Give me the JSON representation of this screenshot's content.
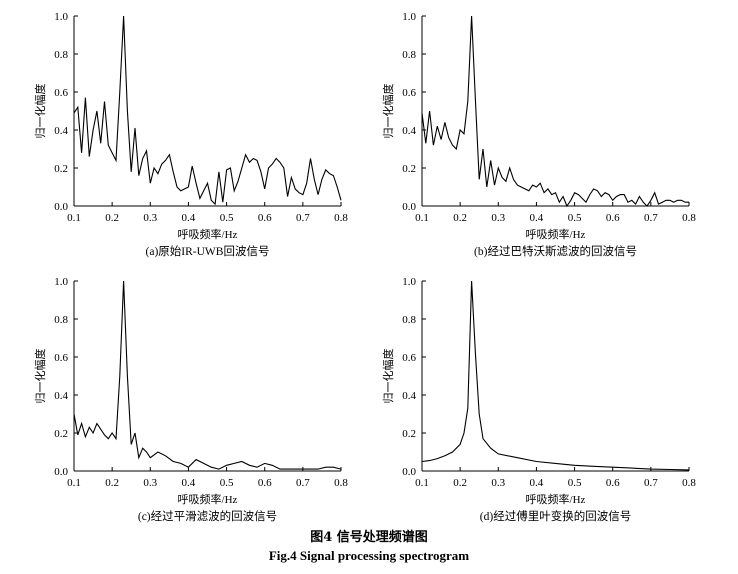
{
  "figure": {
    "caption_zh": "图4  信号处理频谱图",
    "caption_en": "Fig.4  Signal processing spectrogram"
  },
  "chart_data": [
    {
      "type": "line",
      "panel_label": "(a)原始IR-UWB回波信号",
      "xlabel": "呼吸频率/Hz",
      "ylabel": "归一化幅度",
      "xlim": [
        0.1,
        0.8
      ],
      "ylim": [
        0.0,
        1.0
      ],
      "xticks": [
        "0.1",
        "0.2",
        "0.3",
        "0.4",
        "0.5",
        "0.6",
        "0.7",
        "0.8"
      ],
      "yticks": [
        "0.0",
        "0.2",
        "0.4",
        "0.6",
        "0.8",
        "1.0"
      ],
      "x": [
        0.1,
        0.11,
        0.12,
        0.13,
        0.14,
        0.15,
        0.16,
        0.17,
        0.18,
        0.19,
        0.2,
        0.21,
        0.22,
        0.23,
        0.24,
        0.25,
        0.26,
        0.27,
        0.28,
        0.29,
        0.3,
        0.31,
        0.32,
        0.33,
        0.34,
        0.35,
        0.36,
        0.37,
        0.38,
        0.39,
        0.4,
        0.41,
        0.42,
        0.43,
        0.44,
        0.45,
        0.46,
        0.47,
        0.48,
        0.49,
        0.5,
        0.51,
        0.52,
        0.53,
        0.54,
        0.55,
        0.56,
        0.57,
        0.58,
        0.59,
        0.6,
        0.61,
        0.62,
        0.63,
        0.64,
        0.65,
        0.66,
        0.67,
        0.68,
        0.69,
        0.7,
        0.71,
        0.72,
        0.73,
        0.74,
        0.75,
        0.76,
        0.77,
        0.78,
        0.79,
        0.8
      ],
      "y": [
        0.49,
        0.52,
        0.28,
        0.57,
        0.26,
        0.4,
        0.5,
        0.33,
        0.55,
        0.32,
        0.28,
        0.24,
        0.6,
        1.0,
        0.5,
        0.18,
        0.41,
        0.16,
        0.25,
        0.29,
        0.12,
        0.2,
        0.17,
        0.22,
        0.24,
        0.27,
        0.18,
        0.1,
        0.08,
        0.09,
        0.1,
        0.21,
        0.12,
        0.04,
        0.08,
        0.12,
        0.03,
        0.01,
        0.18,
        0.02,
        0.19,
        0.2,
        0.08,
        0.13,
        0.2,
        0.27,
        0.23,
        0.25,
        0.24,
        0.18,
        0.09,
        0.2,
        0.22,
        0.25,
        0.23,
        0.2,
        0.05,
        0.15,
        0.09,
        0.07,
        0.06,
        0.12,
        0.25,
        0.14,
        0.06,
        0.14,
        0.19,
        0.17,
        0.16,
        0.1,
        0.03
      ]
    },
    {
      "type": "line",
      "panel_label": "(b)经过巴特沃斯滤波的回波信号",
      "xlabel": "呼吸频率/Hz",
      "ylabel": "归一化幅度",
      "xlim": [
        0.1,
        0.8
      ],
      "ylim": [
        0.0,
        1.0
      ],
      "xticks": [
        "0.1",
        "0.2",
        "0.3",
        "0.4",
        "0.5",
        "0.6",
        "0.7",
        "0.8"
      ],
      "yticks": [
        "0.0",
        "0.2",
        "0.4",
        "0.6",
        "0.8",
        "1.0"
      ],
      "x": [
        0.1,
        0.11,
        0.12,
        0.13,
        0.14,
        0.15,
        0.16,
        0.17,
        0.18,
        0.19,
        0.2,
        0.21,
        0.22,
        0.23,
        0.24,
        0.25,
        0.26,
        0.27,
        0.28,
        0.29,
        0.3,
        0.31,
        0.32,
        0.33,
        0.34,
        0.35,
        0.36,
        0.37,
        0.38,
        0.39,
        0.4,
        0.41,
        0.42,
        0.43,
        0.44,
        0.45,
        0.46,
        0.47,
        0.48,
        0.49,
        0.5,
        0.51,
        0.52,
        0.53,
        0.54,
        0.55,
        0.56,
        0.57,
        0.58,
        0.59,
        0.6,
        0.61,
        0.62,
        0.63,
        0.64,
        0.65,
        0.66,
        0.67,
        0.68,
        0.69,
        0.7,
        0.71,
        0.72,
        0.73,
        0.74,
        0.75,
        0.76,
        0.77,
        0.78,
        0.79,
        0.8
      ],
      "y": [
        0.49,
        0.33,
        0.5,
        0.32,
        0.42,
        0.35,
        0.44,
        0.36,
        0.32,
        0.3,
        0.4,
        0.38,
        0.55,
        1.0,
        0.56,
        0.14,
        0.3,
        0.1,
        0.24,
        0.11,
        0.2,
        0.15,
        0.13,
        0.2,
        0.14,
        0.11,
        0.1,
        0.09,
        0.08,
        0.11,
        0.1,
        0.12,
        0.07,
        0.09,
        0.06,
        0.07,
        0.02,
        0.05,
        0.0,
        0.03,
        0.07,
        0.06,
        0.04,
        0.02,
        0.06,
        0.09,
        0.08,
        0.05,
        0.07,
        0.06,
        0.03,
        0.05,
        0.06,
        0.06,
        0.02,
        0.03,
        0.01,
        0.05,
        0.02,
        0.0,
        0.03,
        0.07,
        0.01,
        0.02,
        0.03,
        0.03,
        0.02,
        0.03,
        0.03,
        0.02,
        0.02
      ]
    },
    {
      "type": "line",
      "panel_label": "(c)经过平滑滤波的回波信号",
      "xlabel": "呼吸频率/Hz",
      "ylabel": "归一化幅度",
      "xlim": [
        0.1,
        0.8
      ],
      "ylim": [
        0.0,
        1.0
      ],
      "xticks": [
        "0.1",
        "0.2",
        "0.3",
        "0.4",
        "0.5",
        "0.6",
        "0.7",
        "0.8"
      ],
      "yticks": [
        "0.0",
        "0.2",
        "0.4",
        "0.6",
        "0.8",
        "1.0"
      ],
      "x": [
        0.1,
        0.11,
        0.12,
        0.13,
        0.14,
        0.15,
        0.16,
        0.17,
        0.18,
        0.19,
        0.2,
        0.21,
        0.22,
        0.23,
        0.24,
        0.25,
        0.26,
        0.27,
        0.28,
        0.29,
        0.3,
        0.32,
        0.34,
        0.36,
        0.38,
        0.4,
        0.42,
        0.44,
        0.46,
        0.48,
        0.5,
        0.52,
        0.54,
        0.56,
        0.58,
        0.6,
        0.62,
        0.64,
        0.66,
        0.68,
        0.7,
        0.72,
        0.74,
        0.76,
        0.78,
        0.8
      ],
      "y": [
        0.3,
        0.19,
        0.25,
        0.18,
        0.23,
        0.2,
        0.25,
        0.22,
        0.19,
        0.17,
        0.2,
        0.17,
        0.5,
        1.0,
        0.5,
        0.14,
        0.2,
        0.07,
        0.12,
        0.1,
        0.07,
        0.1,
        0.08,
        0.05,
        0.04,
        0.02,
        0.06,
        0.04,
        0.02,
        0.01,
        0.03,
        0.04,
        0.05,
        0.03,
        0.02,
        0.04,
        0.03,
        0.01,
        0.01,
        0.01,
        0.01,
        0.01,
        0.01,
        0.02,
        0.02,
        0.01
      ]
    },
    {
      "type": "line",
      "panel_label": "(d)经过傅里叶变换的回波信号",
      "xlabel": "呼吸频率/Hz",
      "ylabel": "归一化幅度",
      "xlim": [
        0.1,
        0.8
      ],
      "ylim": [
        0.0,
        1.0
      ],
      "xticks": [
        "0.1",
        "0.2",
        "0.3",
        "0.4",
        "0.5",
        "0.6",
        "0.7",
        "0.8"
      ],
      "yticks": [
        "0.0",
        "0.2",
        "0.4",
        "0.6",
        "0.8",
        "1.0"
      ],
      "x": [
        0.1,
        0.12,
        0.14,
        0.16,
        0.18,
        0.2,
        0.21,
        0.22,
        0.23,
        0.24,
        0.25,
        0.26,
        0.28,
        0.3,
        0.35,
        0.4,
        0.45,
        0.5,
        0.55,
        0.6,
        0.65,
        0.7,
        0.75,
        0.8
      ],
      "y": [
        0.05,
        0.055,
        0.065,
        0.08,
        0.1,
        0.14,
        0.2,
        0.33,
        1.0,
        0.62,
        0.3,
        0.17,
        0.12,
        0.09,
        0.07,
        0.05,
        0.04,
        0.03,
        0.025,
        0.02,
        0.015,
        0.01,
        0.008,
        0.006
      ]
    }
  ]
}
